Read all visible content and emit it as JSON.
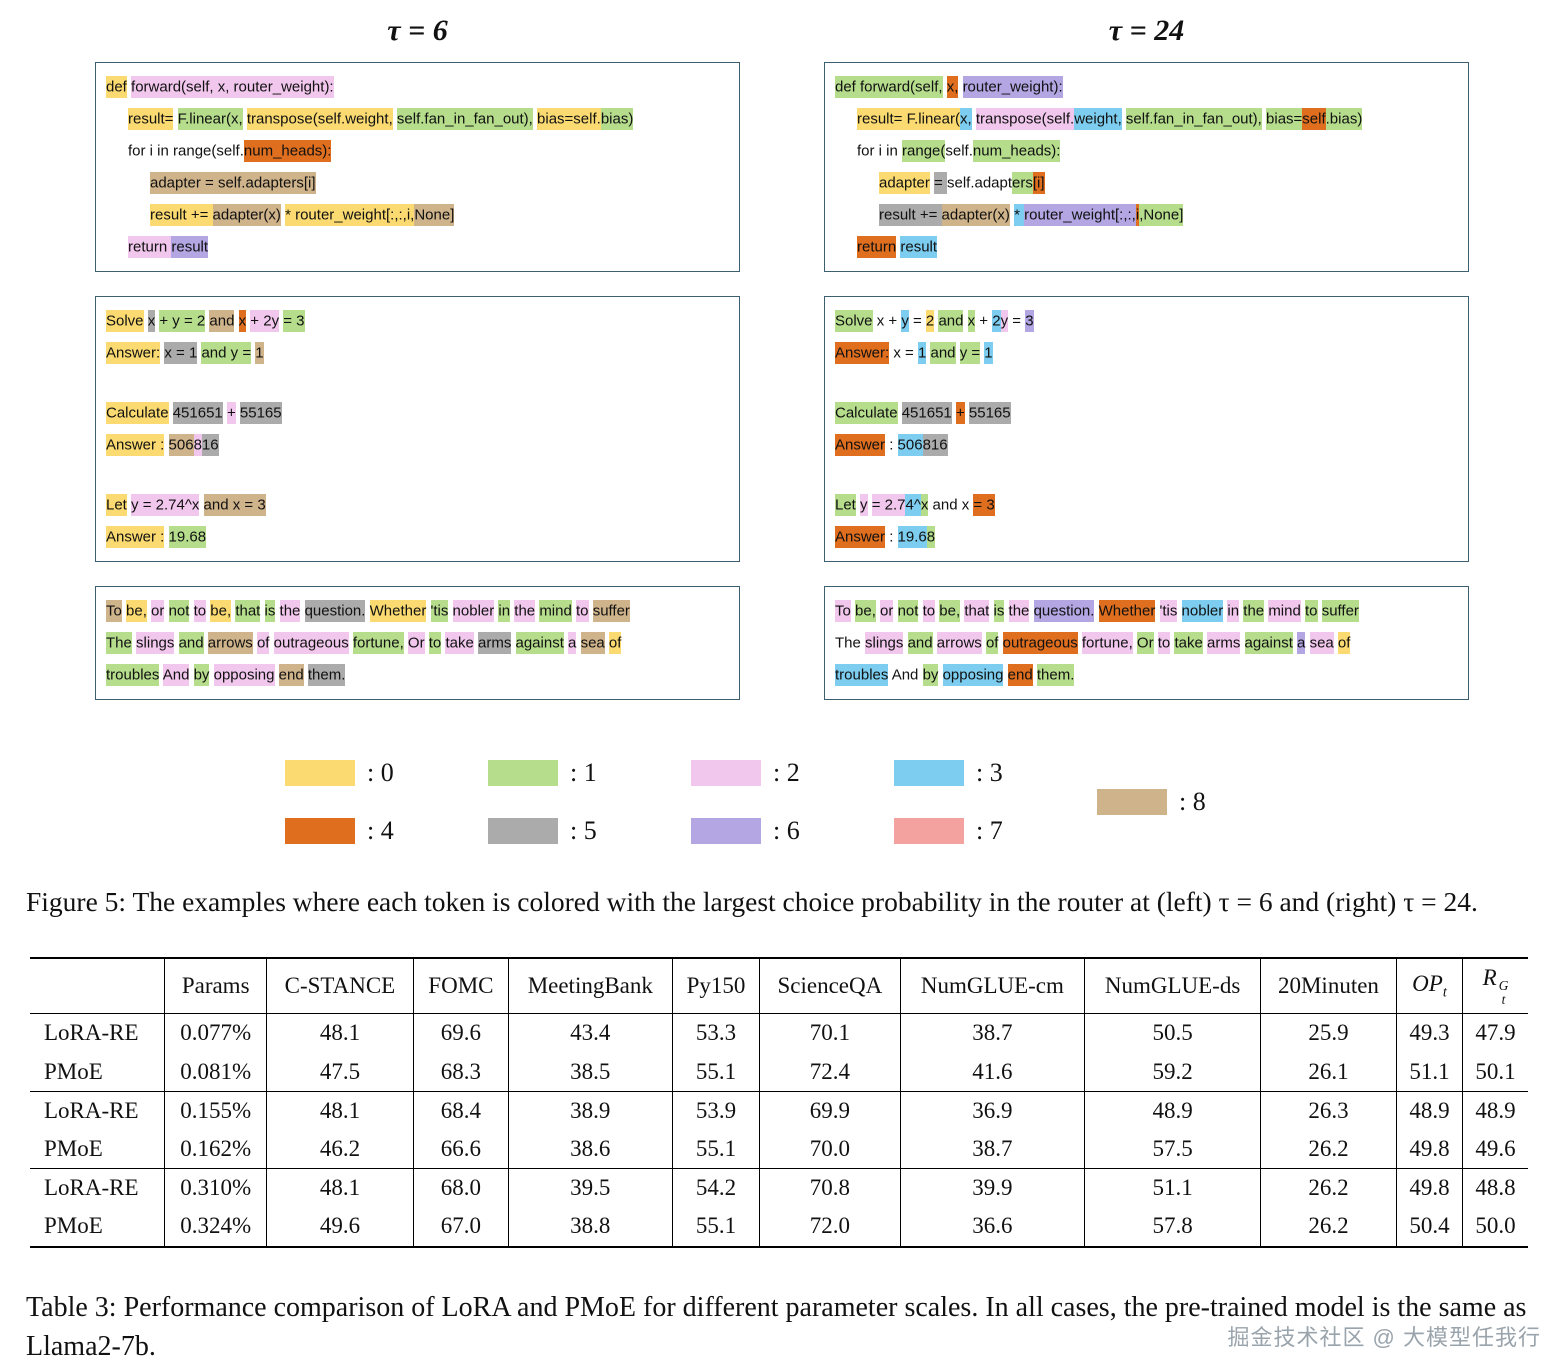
{
  "colors": [
    "#FBDB71",
    "#B5DD8C",
    "#F2C7ED",
    "#7CCDEF",
    "#DF6E1E",
    "#ABABAB",
    "#B3A6E3",
    "#F4A2A0",
    "#CFB38A"
  ],
  "panels": [
    {
      "title": "τ = 6",
      "code_lines": [
        {
          "indent": 0,
          "tokens": [
            [
              "def",
              0
            ],
            [
              " forward(self, x, router_weight):",
              2
            ]
          ]
        },
        {
          "indent": 1,
          "tokens": [
            [
              "result=",
              0
            ],
            [
              " F.linear(x,",
              1
            ],
            [
              " transpose(self.weight,",
              0
            ],
            [
              " self.fan_in_fan_out),",
              1
            ],
            [
              " bias=self.",
              0
            ],
            [
              "bias)",
              1
            ]
          ]
        },
        {
          "indent": 1,
          "tokens": [
            [
              "for i in range(self.",
              null
            ],
            [
              "num_heads):",
              4
            ]
          ]
        },
        {
          "indent": 2,
          "tokens": [
            [
              "adapter = self.adapters[i]",
              8
            ]
          ]
        },
        {
          "indent": 2,
          "tokens": [
            [
              "result += ",
              0
            ],
            [
              "adapter(x)",
              8
            ],
            [
              " * router_weight[:,:,i,",
              0
            ],
            [
              "None]",
              8
            ]
          ]
        },
        {
          "indent": 1,
          "tokens": [
            [
              "return ",
              2
            ],
            [
              "result",
              6
            ]
          ]
        }
      ],
      "math_lines": [
        {
          "indent": 0,
          "tokens": [
            [
              "Solve",
              0
            ],
            [
              " x",
              5
            ],
            [
              " + y = 2",
              1
            ],
            [
              " and",
              8
            ],
            [
              " x",
              4
            ],
            [
              " + 2y",
              2
            ],
            [
              " = 3",
              1
            ]
          ]
        },
        {
          "indent": 0,
          "tokens": [
            [
              "Answer:",
              0
            ],
            [
              " x = 1",
              5
            ],
            [
              " and y =",
              1
            ],
            [
              " 1",
              8
            ]
          ]
        },
        {
          "indent": 0,
          "tokens": []
        },
        {
          "indent": 0,
          "tokens": [
            [
              "Calculate",
              0
            ],
            [
              " 451651",
              5
            ],
            [
              " +",
              2
            ],
            [
              " 55165",
              5
            ]
          ]
        },
        {
          "indent": 0,
          "tokens": [
            [
              "Answer :",
              0
            ],
            [
              " 506",
              8
            ],
            [
              "8",
              2
            ],
            [
              "16",
              5
            ]
          ]
        },
        {
          "indent": 0,
          "tokens": []
        },
        {
          "indent": 0,
          "tokens": [
            [
              "Let",
              0
            ],
            [
              " y = 2.74^x",
              2
            ],
            [
              " and x = 3",
              8
            ]
          ]
        },
        {
          "indent": 0,
          "tokens": [
            [
              "Answer :",
              0
            ],
            [
              " 19.68",
              1
            ]
          ]
        }
      ],
      "text_lines": [
        {
          "indent": 0,
          "tokens": [
            [
              "To",
              8
            ],
            [
              " be,",
              0
            ],
            [
              " or",
              2
            ],
            [
              " not",
              1
            ],
            [
              " to",
              2
            ],
            [
              " be,",
              0
            ],
            [
              " that",
              1
            ],
            [
              " is",
              1
            ],
            [
              " the",
              2
            ],
            [
              " question.",
              5
            ],
            [
              " Whether",
              0
            ],
            [
              " 'tis",
              1
            ],
            [
              " nobler",
              2
            ],
            [
              " in",
              1
            ],
            [
              " the",
              2
            ],
            [
              " mind",
              1
            ],
            [
              " to",
              2
            ],
            [
              " suffer",
              8
            ]
          ]
        },
        {
          "indent": 0,
          "tokens": [
            [
              "The",
              1
            ],
            [
              " slings",
              2
            ],
            [
              " and",
              1
            ],
            [
              " arrows",
              8
            ],
            [
              " of",
              2
            ],
            [
              " outrageous",
              2
            ],
            [
              " fortune,",
              1
            ],
            [
              " Or",
              2
            ],
            [
              " to",
              1
            ],
            [
              " take",
              2
            ],
            [
              " arms",
              5
            ],
            [
              " against",
              1
            ],
            [
              " a",
              2
            ],
            [
              " sea",
              8
            ],
            [
              " of",
              0
            ]
          ]
        },
        {
          "indent": 0,
          "tokens": [
            [
              "troubles",
              1
            ],
            [
              " And",
              2
            ],
            [
              " by",
              1
            ],
            [
              " opposing",
              2
            ],
            [
              " end",
              8
            ],
            [
              " them.",
              5
            ]
          ]
        }
      ]
    },
    {
      "title": "τ = 24",
      "code_lines": [
        {
          "indent": 0,
          "tokens": [
            [
              "def forward(self,",
              1
            ],
            [
              " x,",
              4
            ],
            [
              " router_weight):",
              6
            ]
          ]
        },
        {
          "indent": 1,
          "tokens": [
            [
              "result= F.linear(",
              0
            ],
            [
              "x,",
              3
            ],
            [
              " transpose(self.",
              2
            ],
            [
              "weight,",
              3
            ],
            [
              " self.fan_in_fan_out),",
              1
            ],
            [
              " bias=",
              1
            ],
            [
              "self",
              4
            ],
            [
              ".bias)",
              1
            ]
          ]
        },
        {
          "indent": 1,
          "tokens": [
            [
              "for i in ",
              null
            ],
            [
              "range(",
              1
            ],
            [
              "self.",
              null
            ],
            [
              "num_heads):",
              1
            ]
          ]
        },
        {
          "indent": 2,
          "tokens": [
            [
              "adapter",
              0
            ],
            [
              " = ",
              5
            ],
            [
              "self.adapt",
              null
            ],
            [
              "ers",
              1
            ],
            [
              "[i]",
              4
            ]
          ]
        },
        {
          "indent": 2,
          "tokens": [
            [
              "result += ",
              5
            ],
            [
              "adapter(x)",
              8
            ],
            [
              " * ",
              3
            ],
            [
              "router_weight[:,:,",
              6
            ],
            [
              "i",
              4
            ],
            [
              ",None]",
              1
            ]
          ]
        },
        {
          "indent": 1,
          "tokens": [
            [
              "return",
              4
            ],
            [
              " result",
              3
            ]
          ]
        }
      ],
      "math_lines": [
        {
          "indent": 0,
          "tokens": [
            [
              "Solve",
              1
            ],
            [
              " x",
              null
            ],
            [
              " +",
              null
            ],
            [
              " y",
              3
            ],
            [
              " =",
              null
            ],
            [
              " 2",
              0
            ],
            [
              " and",
              1
            ],
            [
              " x",
              1
            ],
            [
              " +",
              null
            ],
            [
              " 2",
              3
            ],
            [
              "y",
              2
            ],
            [
              " =",
              null
            ],
            [
              " 3",
              6
            ]
          ]
        },
        {
          "indent": 0,
          "tokens": [
            [
              "Answer:",
              4
            ],
            [
              " x =",
              null
            ],
            [
              " 1",
              3
            ],
            [
              " and",
              1
            ],
            [
              " y =",
              1
            ],
            [
              " 1",
              3
            ]
          ]
        },
        {
          "indent": 0,
          "tokens": []
        },
        {
          "indent": 0,
          "tokens": [
            [
              "Calculate",
              1
            ],
            [
              " 451651",
              5
            ],
            [
              " +",
              4
            ],
            [
              " 55165",
              5
            ]
          ]
        },
        {
          "indent": 0,
          "tokens": [
            [
              "Answer",
              4
            ],
            [
              " : ",
              null
            ],
            [
              "506",
              3
            ],
            [
              "816",
              5
            ]
          ]
        },
        {
          "indent": 0,
          "tokens": []
        },
        {
          "indent": 0,
          "tokens": [
            [
              "Let",
              1
            ],
            [
              " y",
              2
            ],
            [
              " = 2.7",
              2
            ],
            [
              "4^",
              3
            ],
            [
              "x",
              1
            ],
            [
              " and x ",
              null
            ],
            [
              "= 3",
              4
            ]
          ]
        },
        {
          "indent": 0,
          "tokens": [
            [
              "Answer",
              4
            ],
            [
              " : ",
              null
            ],
            [
              "19.6",
              3
            ],
            [
              "8",
              1
            ]
          ]
        }
      ],
      "text_lines": [
        {
          "indent": 0,
          "tokens": [
            [
              "To",
              2
            ],
            [
              " be,",
              1
            ],
            [
              " or",
              2
            ],
            [
              " not",
              1
            ],
            [
              " to",
              2
            ],
            [
              " be,",
              1
            ],
            [
              " that",
              2
            ],
            [
              " is",
              1
            ],
            [
              " the",
              2
            ],
            [
              " question.",
              6
            ],
            [
              " Whether",
              4
            ],
            [
              " 'tis",
              2
            ],
            [
              " nobler",
              3
            ],
            [
              " in",
              2
            ],
            [
              " the",
              1
            ],
            [
              " mind",
              2
            ],
            [
              " to",
              1
            ],
            [
              " suffer",
              1
            ]
          ]
        },
        {
          "indent": 0,
          "tokens": [
            [
              "The",
              null
            ],
            [
              " slings",
              2
            ],
            [
              " and",
              1
            ],
            [
              " arrows",
              2
            ],
            [
              " of",
              1
            ],
            [
              " outrageous",
              4
            ],
            [
              " fortune,",
              2
            ],
            [
              " Or",
              1
            ],
            [
              " to",
              2
            ],
            [
              " take",
              1
            ],
            [
              " arms",
              2
            ],
            [
              " against",
              1
            ],
            [
              " a",
              6
            ],
            [
              " sea",
              2
            ],
            [
              " of",
              0
            ]
          ]
        },
        {
          "indent": 0,
          "tokens": [
            [
              "troubles",
              3
            ],
            [
              " And",
              null
            ],
            [
              " by",
              1
            ],
            [
              " opposing",
              3
            ],
            [
              " end",
              4
            ],
            [
              " them.",
              1
            ]
          ]
        }
      ]
    }
  ],
  "legend": {
    "items": [
      {
        "label": ": 0",
        "colorIndex": 0
      },
      {
        "label": ": 1",
        "colorIndex": 1
      },
      {
        "label": ": 2",
        "colorIndex": 2
      },
      {
        "label": ": 3",
        "colorIndex": 3
      },
      {
        "label": ": 4",
        "colorIndex": 4
      },
      {
        "label": ": 5",
        "colorIndex": 5
      },
      {
        "label": ": 6",
        "colorIndex": 6
      },
      {
        "label": ": 7",
        "colorIndex": 7
      },
      {
        "label": ": 8",
        "colorIndex": 8
      }
    ]
  },
  "figure_caption": "Figure 5: The examples where each token is colored with the largest choice probability in the router at (left) τ = 6 and (right) τ = 24.",
  "table": {
    "headers": [
      "",
      "Params",
      "C-STANCE",
      "FOMC",
      "MeetingBank",
      "Py150",
      "ScienceQA",
      "NumGLUE-cm",
      "NumGLUE-ds",
      "20Minuten",
      "OP_t",
      "R_t^G"
    ],
    "groups": [
      {
        "rows": [
          {
            "name": "LoRA-RE",
            "values": [
              "0.077%",
              "48.1",
              "69.6",
              "43.4",
              "53.3",
              "70.1",
              "38.7",
              "50.5",
              "25.9",
              "49.3",
              "47.9"
            ]
          },
          {
            "name": "PMoE",
            "values": [
              "0.081%",
              "47.5",
              "68.3",
              "38.5",
              "55.1",
              "72.4",
              "41.6",
              "59.2",
              "26.1",
              "51.1",
              "50.1"
            ]
          }
        ]
      },
      {
        "rows": [
          {
            "name": "LoRA-RE",
            "values": [
              "0.155%",
              "48.1",
              "68.4",
              "38.9",
              "53.9",
              "69.9",
              "36.9",
              "48.9",
              "26.3",
              "48.9",
              "48.9"
            ]
          },
          {
            "name": "PMoE",
            "values": [
              "0.162%",
              "46.2",
              "66.6",
              "38.6",
              "55.1",
              "70.0",
              "38.7",
              "57.5",
              "26.2",
              "49.8",
              "49.6"
            ]
          }
        ]
      },
      {
        "rows": [
          {
            "name": "LoRA-RE",
            "values": [
              "0.310%",
              "48.1",
              "68.0",
              "39.5",
              "54.2",
              "70.8",
              "39.9",
              "51.1",
              "26.2",
              "49.8",
              "48.8"
            ]
          },
          {
            "name": "PMoE",
            "values": [
              "0.324%",
              "49.6",
              "67.0",
              "38.8",
              "55.1",
              "72.0",
              "36.6",
              "57.8",
              "26.2",
              "50.4",
              "50.0"
            ]
          }
        ]
      }
    ],
    "caption": "Table 3: Performance comparison of LoRA and PMoE for different parameter scales. In all cases, the pre-trained model is the same as Llama2-7b."
  },
  "watermark": "掘金技术社区 @ 大模型任我行"
}
